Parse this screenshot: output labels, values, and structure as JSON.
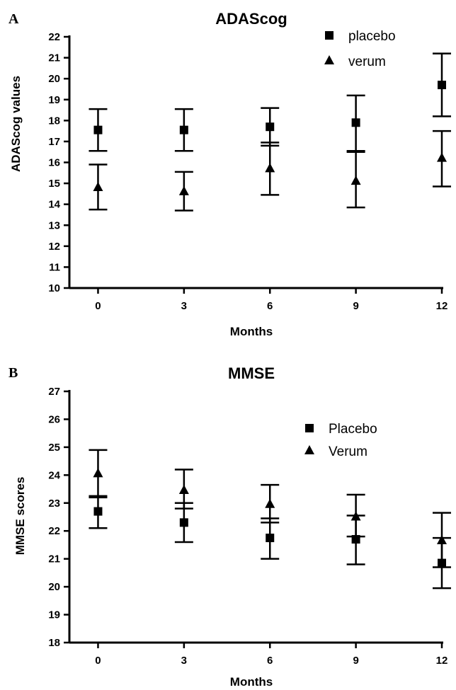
{
  "chart_data": [
    {
      "type": "scatter",
      "panel_label": "A",
      "title": "ADAScog",
      "xlabel": "Months",
      "ylabel": "ADAScog values",
      "x": [
        0,
        3,
        6,
        9,
        12
      ],
      "x_ticks": [
        "0",
        "3",
        "6",
        "9",
        "12"
      ],
      "y_ticks": [
        "10",
        "11",
        "12",
        "13",
        "14",
        "15",
        "16",
        "17",
        "18",
        "19",
        "20",
        "21",
        "22"
      ],
      "xlim": [
        -1,
        12
      ],
      "ylim": [
        10,
        22
      ],
      "grid": false,
      "legend_position": "top-right",
      "series": [
        {
          "name": "placebo",
          "marker": "square",
          "values": [
            17.55,
            17.55,
            17.7,
            17.9,
            19.7
          ],
          "error_low": [
            16.55,
            16.55,
            16.8,
            16.55,
            18.2
          ],
          "error_high": [
            18.55,
            18.55,
            18.6,
            19.2,
            21.2
          ]
        },
        {
          "name": "verum",
          "marker": "triangle",
          "values": [
            14.8,
            14.6,
            15.7,
            15.1,
            16.2
          ],
          "error_low": [
            13.75,
            13.7,
            14.45,
            13.85,
            14.85
          ],
          "error_high": [
            15.9,
            15.55,
            16.95,
            16.5,
            17.5
          ]
        }
      ]
    },
    {
      "type": "scatter",
      "panel_label": "B",
      "title": "MMSE",
      "xlabel": "Months",
      "ylabel": "MMSE scores",
      "x": [
        0,
        3,
        6,
        9,
        12
      ],
      "x_ticks": [
        "0",
        "3",
        "6",
        "9",
        "12"
      ],
      "y_ticks": [
        "18",
        "19",
        "20",
        "21",
        "22",
        "23",
        "24",
        "25",
        "26",
        "27"
      ],
      "xlim": [
        -1,
        12
      ],
      "ylim": [
        18,
        27
      ],
      "grid": false,
      "legend_position": "top-right",
      "series": [
        {
          "name": "Placebo",
          "marker": "square",
          "values": [
            22.7,
            22.3,
            21.75,
            21.7,
            20.85
          ],
          "error_low": [
            22.1,
            21.6,
            21.0,
            20.8,
            19.95
          ],
          "error_high": [
            23.25,
            23.0,
            22.45,
            22.55,
            21.75
          ]
        },
        {
          "name": "Verum",
          "marker": "triangle",
          "values": [
            24.05,
            23.45,
            22.95,
            22.5,
            21.65
          ],
          "error_low": [
            23.2,
            22.8,
            22.3,
            21.8,
            20.7
          ],
          "error_high": [
            24.9,
            24.2,
            23.65,
            23.3,
            22.65
          ]
        }
      ]
    }
  ]
}
